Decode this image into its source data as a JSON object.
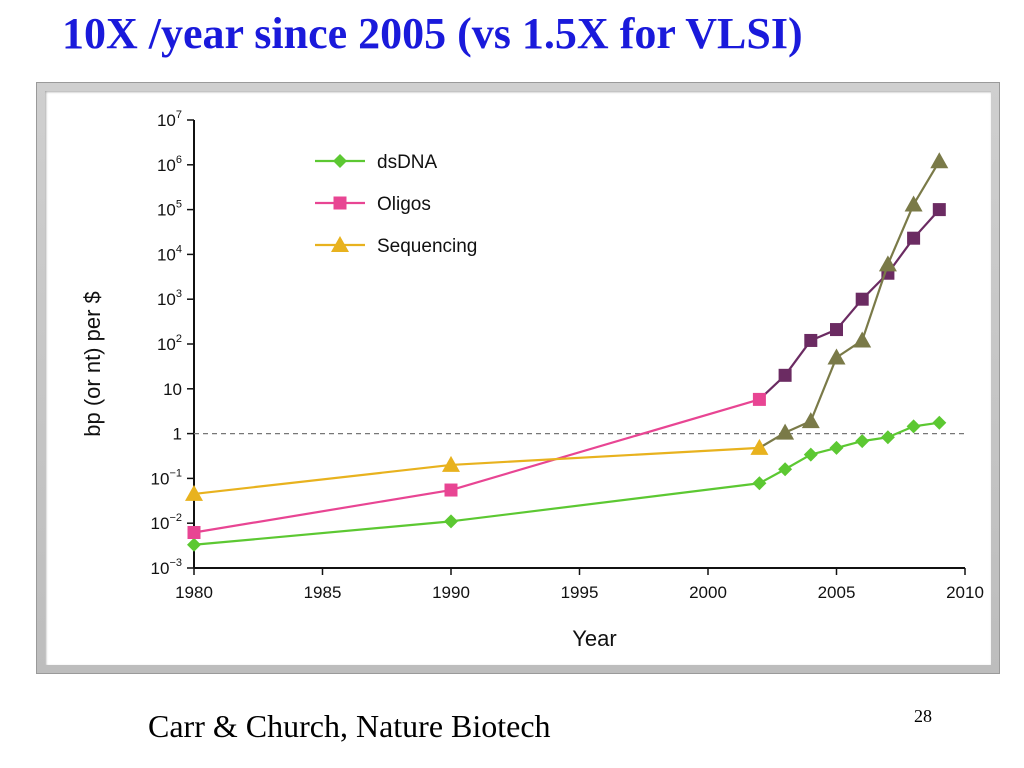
{
  "slide": {
    "title": "10X /year since 2005 (vs 1.5X for VLSI)",
    "caption": "Carr & Church, Nature Biotech",
    "page_number": "28"
  },
  "chart_data": {
    "type": "line",
    "xlabel": "Year",
    "ylabel": "bp (or nt) per $",
    "yscale": "log",
    "xlim": [
      1980,
      2010
    ],
    "ylim": [
      0.001,
      10000000
    ],
    "x_ticks": [
      "1980",
      "1985",
      "1990",
      "1995",
      "2000",
      "2005",
      "2010"
    ],
    "y_ticks": [
      {
        "value": 0.001,
        "base": "10",
        "exp": "−3"
      },
      {
        "value": 0.01,
        "base": "10",
        "exp": "−2"
      },
      {
        "value": 0.1,
        "base": "10",
        "exp": "−1"
      },
      {
        "value": 1,
        "base": "1",
        "exp": ""
      },
      {
        "value": 10,
        "base": "10",
        "exp": ""
      },
      {
        "value": 100,
        "base": "10",
        "exp": "2"
      },
      {
        "value": 1000,
        "base": "10",
        "exp": "3"
      },
      {
        "value": 10000,
        "base": "10",
        "exp": "4"
      },
      {
        "value": 100000,
        "base": "10",
        "exp": "5"
      },
      {
        "value": 1000000,
        "base": "10",
        "exp": "6"
      },
      {
        "value": 10000000,
        "base": "10",
        "exp": "7"
      }
    ],
    "reference_line": {
      "y": 1,
      "style": "dashed"
    },
    "grid": false,
    "legend_position": "top-center",
    "series": [
      {
        "name": "dsDNA",
        "marker": "diamond",
        "color": "#5cc832",
        "x": [
          1980,
          1990,
          2002,
          2003,
          2004,
          2005,
          2006,
          2007,
          2008,
          2009
        ],
        "y": [
          0.0033,
          0.011,
          0.078,
          0.16,
          0.34,
          0.48,
          0.68,
          0.83,
          1.45,
          1.75
        ]
      },
      {
        "name": "Oligos",
        "marker": "square",
        "color": "#e84593",
        "late_color": "#6b2b62",
        "x": [
          1980,
          1990,
          2002,
          2003,
          2004,
          2005,
          2006,
          2007,
          2008,
          2009
        ],
        "y": [
          0.0062,
          0.055,
          5.8,
          20,
          120,
          210,
          1000,
          3800,
          23000,
          100000
        ]
      },
      {
        "name": "Sequencing",
        "marker": "triangle",
        "color": "#e8b21e",
        "late_color": "#7a7a48",
        "x": [
          1980,
          1990,
          2002,
          2003,
          2004,
          2005,
          2006,
          2007,
          2008,
          2009
        ],
        "y": [
          0.045,
          0.2,
          0.48,
          1.05,
          1.9,
          50,
          120,
          6000,
          130000,
          1200000
        ]
      }
    ]
  }
}
